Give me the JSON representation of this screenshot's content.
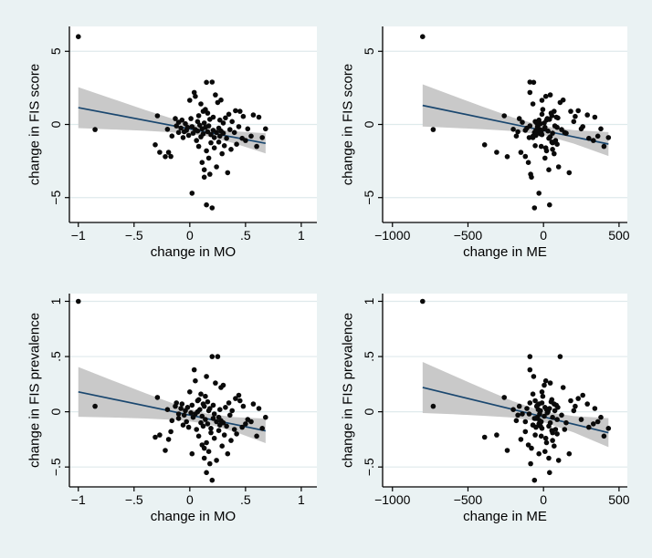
{
  "figure": {
    "description": "2x2 scatter plot grid: change in FIS score / FIS prevalence versus change in MO / change in ME, each with linear fit line and confidence band",
    "background_color": "#eaf2f3",
    "plot_background_color": "#ffffff",
    "gridline_color": "#dfeaec",
    "axis_color": "#000000",
    "marker_color": "#0a0a0a",
    "fit_line_color": "#1a476f",
    "band_color": "#c9c9c9"
  },
  "chart_data": {
    "type": "scatter",
    "grid": "horizontal-only",
    "legend": "none",
    "observations": {
      "fields": [
        "mo",
        "me",
        "fis_score",
        "fis_prev"
      ],
      "rows": [
        [
          -1.0,
          -800,
          6.0,
          1.0
        ],
        [
          -0.85,
          -730,
          -0.35,
          0.05
        ],
        [
          0.02,
          -30,
          -4.7,
          -0.38
        ],
        [
          0.15,
          40,
          -5.5,
          -0.55
        ],
        [
          0.2,
          -60,
          -5.7,
          -0.62
        ],
        [
          0.13,
          -80,
          -3.6,
          -0.33
        ],
        [
          -0.31,
          -390,
          -1.39,
          -0.23
        ],
        [
          -0.29,
          -260,
          0.59,
          0.13
        ],
        [
          -0.27,
          -310,
          -1.9,
          -0.21
        ],
        [
          -0.22,
          -240,
          -2.2,
          -0.35
        ],
        [
          -0.2,
          -200,
          -0.33,
          0.02
        ],
        [
          -0.16,
          -180,
          -0.79,
          -0.08
        ],
        [
          -0.19,
          -150,
          -1.91,
          -0.25
        ],
        [
          -0.17,
          -120,
          -2.19,
          -0.18
        ],
        [
          -0.13,
          -160,
          0.4,
          0.05
        ],
        [
          -0.12,
          -90,
          -0.1,
          0.08
        ],
        [
          -0.1,
          -140,
          0.15,
          -0.02
        ],
        [
          -0.1,
          -60,
          -0.55,
          -0.06
        ],
        [
          -0.08,
          -110,
          -0.25,
          0.03
        ],
        [
          -0.07,
          -30,
          0.3,
          0.07
        ],
        [
          -0.06,
          -70,
          -0.9,
          -0.12
        ],
        [
          -0.05,
          -170,
          -0.5,
          -0.03
        ],
        [
          -0.04,
          -20,
          0.05,
          0.01
        ],
        [
          -0.03,
          -120,
          -0.4,
          -0.09
        ],
        [
          -0.02,
          10,
          -0.2,
          0.04
        ],
        [
          -0.01,
          -50,
          -0.75,
          -0.14
        ],
        [
          0.0,
          -10,
          1.65,
          0.18
        ],
        [
          0.01,
          25,
          0.4,
          -0.01
        ],
        [
          0.02,
          -40,
          -0.15,
          0.06
        ],
        [
          0.03,
          60,
          -0.6,
          -0.05
        ],
        [
          0.04,
          -90,
          2.19,
          0.38
        ],
        [
          0.05,
          15,
          1.92,
          0.28
        ],
        [
          0.05,
          -25,
          -0.35,
          -0.02
        ],
        [
          0.06,
          80,
          -1.1,
          -0.16
        ],
        [
          0.07,
          -55,
          0.2,
          0.1
        ],
        [
          0.07,
          30,
          -0.45,
          0.0
        ],
        [
          0.08,
          -15,
          -1.5,
          -0.22
        ],
        [
          0.08,
          55,
          0.6,
          0.11
        ],
        [
          0.09,
          -35,
          -0.05,
          0.02
        ],
        [
          0.1,
          -70,
          1.4,
          0.16
        ],
        [
          0.1,
          45,
          -0.85,
          -0.1
        ],
        [
          0.11,
          5,
          -0.3,
          -0.04
        ],
        [
          0.11,
          -100,
          -2.6,
          -0.3
        ],
        [
          0.12,
          70,
          0.9,
          0.07
        ],
        [
          0.12,
          -20,
          -0.65,
          -0.13
        ],
        [
          0.13,
          35,
          -3.1,
          -0.42
        ],
        [
          0.13,
          -45,
          0.1,
          0.05
        ],
        [
          0.14,
          90,
          -0.2,
          -0.07
        ],
        [
          0.14,
          -5,
          1.02,
          0.14
        ],
        [
          0.15,
          20,
          -1.8,
          -0.28
        ],
        [
          0.15,
          -65,
          2.88,
          0.32
        ],
        [
          0.16,
          50,
          0.77,
          0.09
        ],
        [
          0.16,
          -30,
          -0.5,
          -0.11
        ],
        [
          0.17,
          10,
          -2.3,
          -0.36
        ],
        [
          0.17,
          75,
          -0.1,
          0.01
        ],
        [
          0.18,
          -85,
          -3.4,
          -0.47
        ],
        [
          0.18,
          40,
          0.35,
          0.03
        ],
        [
          0.19,
          -10,
          -0.7,
          -0.15
        ],
        [
          0.19,
          60,
          -1.25,
          -0.19
        ],
        [
          0.2,
          -90,
          2.9,
          0.5
        ],
        [
          0.21,
          -50,
          -0.4,
          -0.06
        ],
        [
          0.21,
          85,
          0.5,
          0.06
        ],
        [
          0.22,
          15,
          -1.6,
          -0.24
        ],
        [
          0.22,
          -95,
          -0.9,
          -0.02
        ],
        [
          0.23,
          45,
          2.02,
          0.26
        ],
        [
          0.24,
          -15,
          -0.55,
          -0.09
        ],
        [
          0.24,
          100,
          -2.9,
          -0.44
        ],
        [
          0.25,
          110,
          1.5,
          0.5
        ],
        [
          0.26,
          -40,
          -0.25,
          -0.05
        ],
        [
          0.26,
          55,
          -1.2,
          -0.17
        ],
        [
          0.27,
          20,
          0.3,
          0.02
        ],
        [
          0.27,
          -70,
          -0.8,
          -0.12
        ],
        [
          0.28,
          130,
          1.67,
          0.22
        ],
        [
          0.28,
          -25,
          -0.45,
          -0.08
        ],
        [
          0.29,
          70,
          -2.0,
          -0.31
        ],
        [
          0.3,
          5,
          0.1,
          0.24
        ],
        [
          0.3,
          150,
          -0.6,
          -0.1
        ],
        [
          0.31,
          -55,
          -1.45,
          -0.21
        ],
        [
          0.32,
          95,
          0.45,
          0.04
        ],
        [
          0.33,
          35,
          -0.95,
          -0.13
        ],
        [
          0.34,
          170,
          -3.3,
          -0.38
        ],
        [
          0.35,
          -10,
          0.7,
          0.08
        ],
        [
          0.36,
          120,
          -0.35,
          -0.03
        ],
        [
          0.37,
          60,
          -1.7,
          -0.26
        ],
        [
          0.38,
          200,
          0.2,
          0.01
        ],
        [
          0.4,
          140,
          -0.55,
          -0.16
        ],
        [
          0.41,
          230,
          0.94,
          0.12
        ],
        [
          0.42,
          90,
          -1.35,
          -0.2
        ],
        [
          0.44,
          260,
          -0.15,
          0.15
        ],
        [
          0.45,
          180,
          0.9,
          0.1
        ],
        [
          0.47,
          300,
          -0.95,
          -0.14
        ],
        [
          0.48,
          210,
          0.55,
          0.05
        ],
        [
          0.5,
          330,
          -1.1,
          -0.11
        ],
        [
          0.52,
          250,
          -0.3,
          -0.07
        ],
        [
          0.55,
          360,
          -0.8,
          -0.09
        ],
        [
          0.57,
          290,
          0.65,
          0.07
        ],
        [
          0.6,
          400,
          -1.5,
          -0.22
        ],
        [
          0.62,
          340,
          0.5,
          0.03
        ],
        [
          0.65,
          430,
          -0.9,
          -0.15
        ],
        [
          0.68,
          380,
          -0.3,
          -0.05
        ]
      ]
    },
    "panels": [
      {
        "id": "score-vs-mo",
        "x_field": "mo",
        "y_field": "fis_score",
        "xlabel": "change in MO",
        "ylabel": "change in FIS score",
        "xlim": [
          -1.08,
          1.14
        ],
        "ylim": [
          -6.7,
          6.7
        ],
        "xticks": [
          {
            "v": -1,
            "label": "−1"
          },
          {
            "v": -0.5,
            "label": "−.5"
          },
          {
            "v": 0,
            "label": "0"
          },
          {
            "v": 0.5,
            "label": ".5"
          },
          {
            "v": 1,
            "label": "1"
          }
        ],
        "yticks": [
          {
            "v": -5,
            "label": "−5"
          },
          {
            "v": 0,
            "label": "0"
          },
          {
            "v": 5,
            "label": "5"
          }
        ],
        "fit": {
          "x": [
            -1.0,
            0.68
          ],
          "y": [
            1.15,
            -1.29
          ]
        },
        "band": {
          "x": [
            -1.0,
            -0.7,
            -0.4,
            -0.1,
            0.15,
            0.4,
            0.68
          ],
          "upper": [
            2.55,
            1.77,
            0.99,
            0.26,
            -0.24,
            -0.47,
            -0.6
          ],
          "lower": [
            -0.25,
            -0.34,
            -0.43,
            -0.57,
            -0.8,
            -1.29,
            -1.98
          ]
        }
      },
      {
        "id": "score-vs-me",
        "x_field": "me",
        "y_field": "fis_score",
        "xlabel": "change in ME",
        "ylabel": "change in FIS score",
        "xlim": [
          -1065,
          555
        ],
        "ylim": [
          -6.7,
          6.7
        ],
        "xticks": [
          {
            "v": -1000,
            "label": "−1000"
          },
          {
            "v": -500,
            "label": "−500"
          },
          {
            "v": 0,
            "label": "0"
          },
          {
            "v": 500,
            "label": "500"
          }
        ],
        "yticks": [
          {
            "v": -5,
            "label": "−5"
          },
          {
            "v": 0,
            "label": "0"
          },
          {
            "v": 5,
            "label": "5"
          }
        ],
        "fit": {
          "x": [
            -800,
            430
          ],
          "y": [
            1.3,
            -1.34
          ]
        },
        "band": {
          "x": [
            -800,
            -600,
            -400,
            -200,
            0,
            200,
            430
          ],
          "upper": [
            2.74,
            1.97,
            1.21,
            0.47,
            -0.12,
            -0.39,
            -0.52
          ],
          "lower": [
            -0.14,
            -0.23,
            -0.33,
            -0.45,
            -0.72,
            -1.31,
            -2.16
          ]
        }
      },
      {
        "id": "prev-vs-mo",
        "x_field": "mo",
        "y_field": "fis_prev",
        "xlabel": "change in MO",
        "ylabel": "change in FIS prevalence",
        "xlim": [
          -1.08,
          1.14
        ],
        "ylim": [
          -0.68,
          1.07
        ],
        "xticks": [
          {
            "v": -1,
            "label": "−1"
          },
          {
            "v": -0.5,
            "label": "−.5"
          },
          {
            "v": 0,
            "label": "0"
          },
          {
            "v": 0.5,
            "label": ".5"
          },
          {
            "v": 1,
            "label": "1"
          }
        ],
        "yticks": [
          {
            "v": -0.5,
            "label": "−.5"
          },
          {
            "v": 0,
            "label": "0"
          },
          {
            "v": 0.5,
            "label": ".5"
          },
          {
            "v": 1,
            "label": "1"
          }
        ],
        "fit": {
          "x": [
            -1.0,
            0.68
          ],
          "y": [
            0.18,
            -0.173
          ]
        },
        "band": {
          "x": [
            -1.0,
            -0.7,
            -0.4,
            -0.1,
            0.15,
            0.4,
            0.68
          ],
          "upper": [
            0.405,
            0.286,
            0.169,
            0.057,
            -0.017,
            -0.048,
            -0.062
          ],
          "lower": [
            -0.045,
            -0.052,
            -0.061,
            -0.075,
            -0.107,
            -0.18,
            -0.284
          ]
        }
      },
      {
        "id": "prev-vs-me",
        "x_field": "me",
        "y_field": "fis_prev",
        "xlabel": "change in ME",
        "ylabel": "change in FIS prevalence",
        "xlim": [
          -1065,
          555
        ],
        "ylim": [
          -0.68,
          1.07
        ],
        "xticks": [
          {
            "v": -1000,
            "label": "−1000"
          },
          {
            "v": -500,
            "label": "−500"
          },
          {
            "v": 0,
            "label": "0"
          },
          {
            "v": 500,
            "label": "500"
          }
        ],
        "yticks": [
          {
            "v": -0.5,
            "label": "−.5"
          },
          {
            "v": 0,
            "label": "0"
          },
          {
            "v": 0.5,
            "label": ".5"
          },
          {
            "v": 1,
            "label": "1"
          }
        ],
        "fit": {
          "x": [
            -800,
            430
          ],
          "y": [
            0.22,
            -0.189
          ]
        },
        "band": {
          "x": [
            -800,
            -600,
            -400,
            -200,
            0,
            200,
            430
          ],
          "upper": [
            0.451,
            0.33,
            0.21,
            0.095,
            0.002,
            -0.039,
            -0.058
          ],
          "lower": [
            -0.011,
            -0.022,
            -0.036,
            -0.053,
            -0.094,
            -0.187,
            -0.32
          ]
        }
      }
    ]
  }
}
